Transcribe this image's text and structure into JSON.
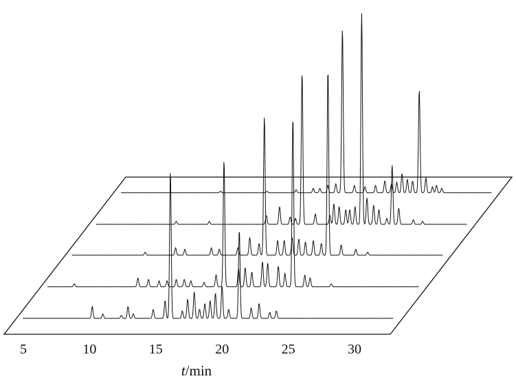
{
  "chart_data": {
    "type": "line",
    "style": "3d-waterfall",
    "xlabel_var": "t",
    "xlabel_unit": "/min",
    "x_ticks": [
      "5",
      "10",
      "15",
      "20",
      "25",
      "30"
    ],
    "xlim": [
      3.5,
      31.5
    ],
    "ylim": [
      0,
      1
    ],
    "series": [
      {
        "peaks": [
          [
            10.2,
            0.08
          ],
          [
            11.0,
            0.03
          ],
          [
            12.4,
            0.02
          ],
          [
            12.9,
            0.08
          ],
          [
            13.3,
            0.03
          ],
          [
            14.8,
            0.06
          ],
          [
            15.7,
            0.12
          ],
          [
            16.1,
            1.0
          ],
          [
            17.0,
            0.05
          ],
          [
            17.4,
            0.13
          ],
          [
            17.9,
            0.18
          ],
          [
            18.3,
            0.06
          ],
          [
            18.7,
            0.1
          ],
          [
            19.1,
            0.12
          ],
          [
            19.5,
            0.17
          ],
          [
            20.0,
            0.22
          ],
          [
            20.5,
            0.06
          ],
          [
            21.3,
            0.6
          ],
          [
            22.2,
            0.07
          ],
          [
            22.8,
            0.1
          ],
          [
            23.6,
            0.04
          ],
          [
            24.1,
            0.05
          ]
        ]
      },
      {
        "peaks": [
          [
            7.0,
            0.02
          ],
          [
            11.8,
            0.06
          ],
          [
            12.6,
            0.05
          ],
          [
            13.4,
            0.04
          ],
          [
            14.0,
            0.04
          ],
          [
            14.7,
            0.05
          ],
          [
            15.3,
            0.05
          ],
          [
            15.8,
            0.04
          ],
          [
            16.8,
            0.03
          ],
          [
            17.7,
            0.08
          ],
          [
            18.3,
            0.86
          ],
          [
            19.4,
            0.12
          ],
          [
            19.9,
            0.13
          ],
          [
            20.4,
            0.1
          ],
          [
            21.2,
            0.17
          ],
          [
            21.6,
            0.16
          ],
          [
            22.4,
            0.14
          ],
          [
            22.9,
            0.09
          ],
          [
            23.5,
            1.15
          ],
          [
            24.4,
            0.08
          ],
          [
            24.8,
            0.06
          ],
          [
            26.4,
            0.02
          ]
        ]
      },
      {
        "peaks": [
          [
            10.5,
            0.02
          ],
          [
            12.8,
            0.05
          ],
          [
            13.5,
            0.04
          ],
          [
            15.5,
            0.05
          ],
          [
            16.1,
            0.04
          ],
          [
            17.5,
            0.05
          ],
          [
            18.4,
            0.12
          ],
          [
            19.1,
            0.08
          ],
          [
            19.5,
            0.94
          ],
          [
            20.5,
            0.1
          ],
          [
            21.0,
            0.1
          ],
          [
            21.6,
            0.12
          ],
          [
            22.1,
            0.11
          ],
          [
            22.6,
            0.09
          ],
          [
            23.2,
            0.1
          ],
          [
            23.8,
            0.08
          ],
          [
            24.3,
            1.26
          ],
          [
            25.3,
            0.07
          ],
          [
            26.4,
            0.04
          ],
          [
            27.3,
            0.02
          ]
        ]
      },
      {
        "peaks": [
          [
            11.0,
            0.02
          ],
          [
            13.5,
            0.02
          ],
          [
            17.8,
            0.06
          ],
          [
            18.8,
            0.12
          ],
          [
            19.6,
            0.05
          ],
          [
            20.0,
            0.04
          ],
          [
            20.5,
            1.03
          ],
          [
            21.5,
            0.07
          ],
          [
            22.6,
            0.06
          ],
          [
            22.9,
            0.14
          ],
          [
            23.3,
            0.12
          ],
          [
            23.8,
            0.1
          ],
          [
            24.1,
            0.1
          ],
          [
            24.5,
            0.12
          ],
          [
            25.0,
            1.43
          ],
          [
            25.4,
            0.18
          ],
          [
            25.9,
            0.13
          ],
          [
            26.3,
            0.1
          ],
          [
            26.9,
            0.04
          ],
          [
            27.3,
            0.4
          ],
          [
            27.8,
            0.11
          ],
          [
            28.9,
            0.03
          ],
          [
            29.6,
            0.02
          ]
        ]
      },
      {
        "peaks": [
          [
            12.5,
            0.01
          ],
          [
            16.0,
            0.01
          ],
          [
            18.2,
            0.02
          ],
          [
            19.5,
            0.03
          ],
          [
            20.0,
            0.03
          ],
          [
            20.6,
            0.05
          ],
          [
            21.2,
            0.06
          ],
          [
            21.7,
            1.11
          ],
          [
            22.6,
            0.05
          ],
          [
            23.4,
            0.04
          ],
          [
            24.2,
            0.05
          ],
          [
            24.9,
            0.08
          ],
          [
            25.4,
            0.06
          ],
          [
            25.8,
            0.07
          ],
          [
            26.2,
            0.13
          ],
          [
            26.6,
            0.09
          ],
          [
            27.0,
            0.08
          ],
          [
            27.5,
            0.7
          ],
          [
            28.0,
            0.1
          ],
          [
            28.5,
            0.04
          ],
          [
            28.8,
            0.05
          ],
          [
            29.2,
            0.03
          ]
        ]
      }
    ]
  }
}
